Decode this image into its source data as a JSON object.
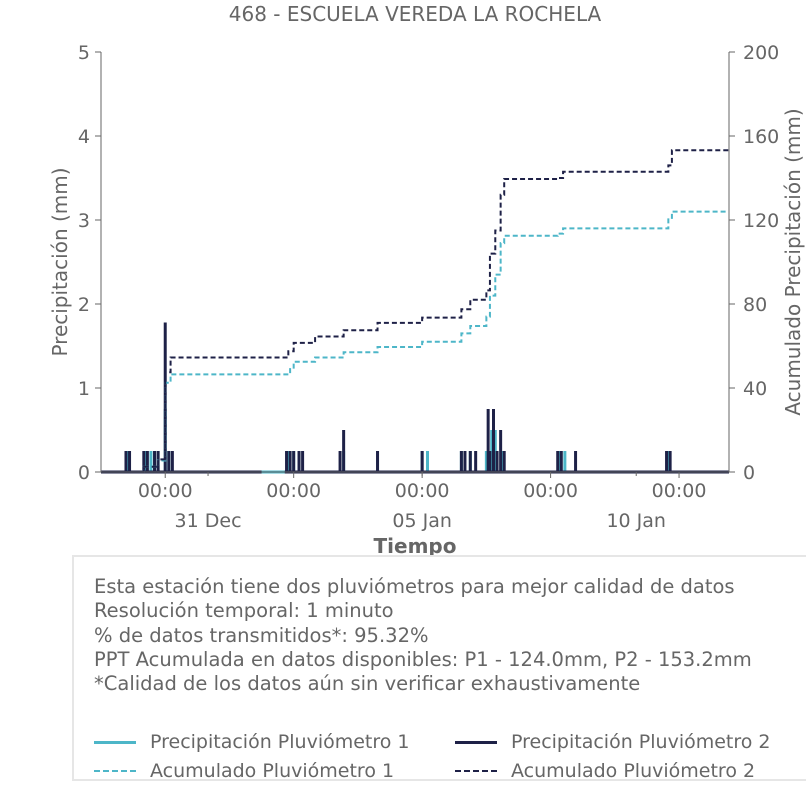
{
  "chart_data": {
    "type": "line",
    "title": "468 - ESCUELA VEREDA LA ROCHELA",
    "xlabel": "Tiempo",
    "ylabel_left": "Precipitación (mm)",
    "ylabel_right": "Acumulado Precipitación (mm)",
    "ylim_left": [
      0,
      5
    ],
    "ylim_right": [
      0,
      200
    ],
    "yticks_left": [
      "0",
      "1",
      "2",
      "3",
      "4",
      "5"
    ],
    "yticks_right": [
      "0",
      "40",
      "80",
      "120",
      "160",
      "200"
    ],
    "x_range": [
      "2024-12-28 12:00",
      "2025-01-12 04:00"
    ],
    "x_major_ticks": [
      {
        "t": "2024-12-30 00:00",
        "label": "00:00"
      },
      {
        "t": "2025-01-02 00:00",
        "label": "00:00"
      },
      {
        "t": "2025-01-05 00:00",
        "label": "00:00"
      },
      {
        "t": "2025-01-08 00:00",
        "label": "00:00"
      },
      {
        "t": "2025-01-11 00:00",
        "label": "00:00"
      }
    ],
    "x_date_labels": [
      {
        "t": "2024-12-31 00:00",
        "label": "31 Dec"
      },
      {
        "t": "2025-01-05 00:00",
        "label": "05 Jan"
      },
      {
        "t": "2025-01-10 00:00",
        "label": "10 Jan"
      }
    ],
    "x_minor_ticks": [
      "2024-12-31 00:00",
      "2025-01-05 00:00",
      "2025-01-10 00:00"
    ],
    "grid": false,
    "colors": {
      "p1": "#4db6c8",
      "p2": "#1e2147",
      "axis": "#666666"
    },
    "series": [
      {
        "name": "Precipitación Pluviómetro 1",
        "axis": "left",
        "style": "solid",
        "bars": [
          [
            "2024-12-29 03:00",
            0.25
          ],
          [
            "2024-12-29 13:00",
            0.25
          ],
          [
            "2024-12-29 16:00",
            0.25
          ],
          [
            "2024-12-29 20:00",
            0.25
          ],
          [
            "2024-12-30 00:00",
            0.75
          ],
          [
            "2024-12-30 02:00",
            0.25
          ],
          [
            "2025-01-01 21:00",
            0.25
          ],
          [
            "2025-01-02 00:00",
            0.25
          ],
          [
            "2025-01-02 03:00",
            0.25
          ],
          [
            "2025-01-03 04:00",
            0.25
          ],
          [
            "2025-01-03 23:00",
            0.25
          ],
          [
            "2025-01-05 00:00",
            0.25
          ],
          [
            "2025-01-05 03:00",
            0.25
          ],
          [
            "2025-01-05 22:00",
            0.25
          ],
          [
            "2025-01-06 03:00",
            0.25
          ],
          [
            "2025-01-06 12:00",
            0.25
          ],
          [
            "2025-01-06 15:00",
            0.5
          ],
          [
            "2025-01-06 17:00",
            0.5
          ],
          [
            "2025-01-06 21:00",
            0.25
          ],
          [
            "2025-01-08 05:00",
            0.25
          ],
          [
            "2025-01-08 08:00",
            0.25
          ],
          [
            "2025-01-10 18:00",
            0.25
          ]
        ]
      },
      {
        "name": "Precipitación Pluviómetro 2",
        "axis": "left",
        "style": "solid",
        "bars": [
          [
            "2024-12-29 02:00",
            0.25
          ],
          [
            "2024-12-29 04:00",
            0.25
          ],
          [
            "2024-12-29 12:00",
            0.25
          ],
          [
            "2024-12-29 14:00",
            0.25
          ],
          [
            "2024-12-29 18:00",
            0.25
          ],
          [
            "2024-12-29 20:00",
            0.25
          ],
          [
            "2024-12-30 00:00",
            1.78
          ],
          [
            "2024-12-30 02:00",
            0.25
          ],
          [
            "2024-12-30 04:00",
            0.25
          ],
          [
            "2025-01-01 20:00",
            0.25
          ],
          [
            "2025-01-01 22:00",
            0.25
          ],
          [
            "2025-01-02 00:00",
            0.25
          ],
          [
            "2025-01-02 03:00",
            0.25
          ],
          [
            "2025-01-02 05:00",
            0.25
          ],
          [
            "2025-01-03 02:00",
            0.25
          ],
          [
            "2025-01-03 04:00",
            0.5
          ],
          [
            "2025-01-03 23:00",
            0.25
          ],
          [
            "2025-01-05 00:00",
            0.25
          ],
          [
            "2025-01-05 22:00",
            0.25
          ],
          [
            "2025-01-06 00:00",
            0.25
          ],
          [
            "2025-01-06 03:00",
            0.25
          ],
          [
            "2025-01-06 06:00",
            0.25
          ],
          [
            "2025-01-06 13:00",
            0.75
          ],
          [
            "2025-01-06 14:00",
            0.25
          ],
          [
            "2025-01-06 16:00",
            0.75
          ],
          [
            "2025-01-06 18:00",
            0.25
          ],
          [
            "2025-01-06 20:00",
            0.5
          ],
          [
            "2025-01-06 22:00",
            0.25
          ],
          [
            "2025-01-08 04:00",
            0.25
          ],
          [
            "2025-01-08 06:00",
            0.25
          ],
          [
            "2025-01-08 14:00",
            0.25
          ],
          [
            "2025-01-10 17:00",
            0.25
          ],
          [
            "2025-01-10 19:00",
            0.25
          ]
        ],
        "gaps": [
          [
            "2025-01-01 06:00",
            "2025-01-01 19:00"
          ]
        ]
      },
      {
        "name": "Acumulado Pluviómetro 1",
        "axis": "right",
        "style": "dashed",
        "steps": [
          [
            "2024-12-28 12:00",
            0
          ],
          [
            "2024-12-29 12:00",
            2.5
          ],
          [
            "2024-12-29 20:00",
            5.5
          ],
          [
            "2024-12-30 00:00",
            42.5
          ],
          [
            "2024-12-30 03:00",
            46.5
          ],
          [
            "2025-01-01 22:00",
            49
          ],
          [
            "2025-01-02 00:00",
            52.5
          ],
          [
            "2025-01-02 12:00",
            54.5
          ],
          [
            "2025-01-03 04:00",
            57
          ],
          [
            "2025-01-03 23:00",
            59.5
          ],
          [
            "2025-01-05 00:00",
            62
          ],
          [
            "2025-01-05 22:00",
            66
          ],
          [
            "2025-01-06 03:00",
            69.5
          ],
          [
            "2025-01-06 12:00",
            74
          ],
          [
            "2025-01-06 14:00",
            84
          ],
          [
            "2025-01-06 17:00",
            94
          ],
          [
            "2025-01-06 20:00",
            109
          ],
          [
            "2025-01-06 22:00",
            112.5
          ],
          [
            "2025-01-08 04:00",
            113.5
          ],
          [
            "2025-01-08 07:00",
            116
          ],
          [
            "2025-01-10 18:00",
            121
          ],
          [
            "2025-01-10 20:00",
            124
          ],
          [
            "2025-01-12 04:00",
            124
          ]
        ]
      },
      {
        "name": "Acumulado Pluviómetro 2",
        "axis": "right",
        "style": "dashed",
        "steps": [
          [
            "2024-12-28 12:00",
            0
          ],
          [
            "2024-12-29 12:00",
            2.5
          ],
          [
            "2024-12-29 20:00",
            6
          ],
          [
            "2024-12-30 00:00",
            47.5
          ],
          [
            "2024-12-30 03:00",
            54.5
          ],
          [
            "2025-01-01 21:00",
            57.5
          ],
          [
            "2025-01-02 00:00",
            61.5
          ],
          [
            "2025-01-02 12:00",
            64.5
          ],
          [
            "2025-01-03 04:00",
            67.5
          ],
          [
            "2025-01-03 23:00",
            71
          ],
          [
            "2025-01-05 00:00",
            73.5
          ],
          [
            "2025-01-05 22:00",
            77.5
          ],
          [
            "2025-01-06 03:00",
            82
          ],
          [
            "2025-01-06 12:00",
            86.5
          ],
          [
            "2025-01-06 14:00",
            104
          ],
          [
            "2025-01-06 17:00",
            115
          ],
          [
            "2025-01-06 20:00",
            132
          ],
          [
            "2025-01-06 22:00",
            139.5
          ],
          [
            "2025-01-08 04:00",
            140
          ],
          [
            "2025-01-08 07:00",
            143
          ],
          [
            "2025-01-10 18:00",
            146
          ],
          [
            "2025-01-10 20:00",
            153.2
          ],
          [
            "2025-01-12 04:00",
            153.2
          ]
        ]
      }
    ]
  },
  "info": {
    "lines": [
      "Esta estación tiene dos pluviómetros para mejor calidad de datos",
      "Resolución temporal: 1 minuto",
      "% de datos transmitidos*: 95.32%",
      "PPT Acumulada en datos disponibles: P1 - 124.0mm, P2 - 153.2mm",
      "*Calidad de los datos aún sin verificar exhaustivamente"
    ]
  },
  "legend": {
    "p1_precip": "Precipitación Pluviómetro 1",
    "p2_precip": "Precipitación Pluviómetro 2",
    "p1_accum": "Acumulado Pluviómetro 1",
    "p2_accum": "Acumulado Pluviómetro 2"
  }
}
